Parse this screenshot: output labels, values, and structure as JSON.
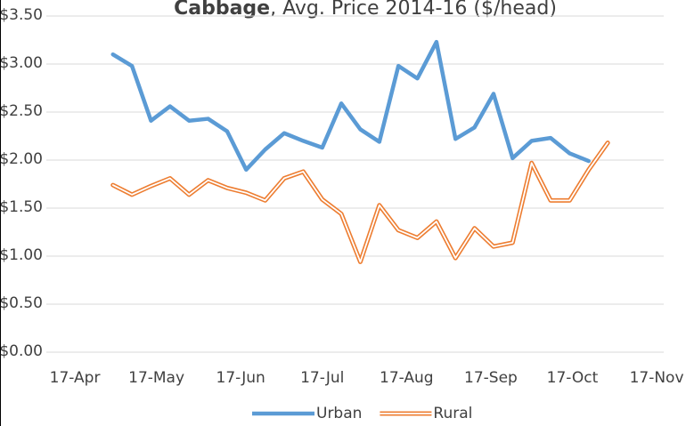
{
  "chart_data": {
    "type": "line",
    "title_bold": "Cabbage",
    "title": ", Avg. Price 2014-16  ($/head)",
    "x": [
      14,
      21,
      28,
      35,
      42,
      49,
      56,
      63,
      70,
      77,
      84,
      91,
      98,
      105,
      112,
      119,
      126,
      133,
      140,
      147,
      154,
      161,
      168,
      175,
      182,
      189,
      196
    ],
    "xlim": [
      -10.5,
      216.6
    ],
    "xticks": [
      {
        "value": 0,
        "label": "17-Apr"
      },
      {
        "value": 30,
        "label": "17-May"
      },
      {
        "value": 61,
        "label": "17-Jun"
      },
      {
        "value": 91,
        "label": "17-Jul"
      },
      {
        "value": 122,
        "label": "17-Aug"
      },
      {
        "value": 153,
        "label": "17-Sep"
      },
      {
        "value": 183,
        "label": "17-Oct"
      },
      {
        "value": 214,
        "label": "17-Nov"
      }
    ],
    "ylim": [
      0,
      3.5
    ],
    "yticks": [
      {
        "value": 0,
        "label": "$0.00"
      },
      {
        "value": 0.5,
        "label": "$0.50"
      },
      {
        "value": 1,
        "label": "$1.00"
      },
      {
        "value": 1.5,
        "label": "$1.50"
      },
      {
        "value": 2,
        "label": "$2.00"
      },
      {
        "value": 2.5,
        "label": "$2.50"
      },
      {
        "value": 3,
        "label": "$3.00"
      },
      {
        "value": 3.5,
        "label": "$3.50"
      }
    ],
    "grid": true,
    "legend": "bottom",
    "series": [
      {
        "name": "Urban",
        "color": "#5b9bd5",
        "style": "solid",
        "values": [
          3.1,
          2.98,
          2.41,
          2.56,
          2.41,
          2.43,
          2.3,
          1.9,
          2.11,
          2.28,
          2.2,
          2.13,
          2.59,
          2.32,
          2.19,
          2.98,
          2.85,
          3.23,
          2.22,
          2.34,
          2.69,
          2.02,
          2.2,
          2.23,
          2.07,
          1.99,
          null
        ]
      },
      {
        "name": "Rural",
        "color": "#ed7d31",
        "style": "double",
        "values": [
          1.74,
          1.64,
          1.73,
          1.81,
          1.64,
          1.79,
          1.71,
          1.66,
          1.58,
          1.81,
          1.88,
          1.59,
          1.44,
          0.94,
          1.53,
          1.27,
          1.19,
          1.36,
          0.98,
          1.29,
          1.1,
          1.14,
          1.97,
          1.58,
          1.58,
          1.9,
          2.18
        ]
      }
    ]
  }
}
